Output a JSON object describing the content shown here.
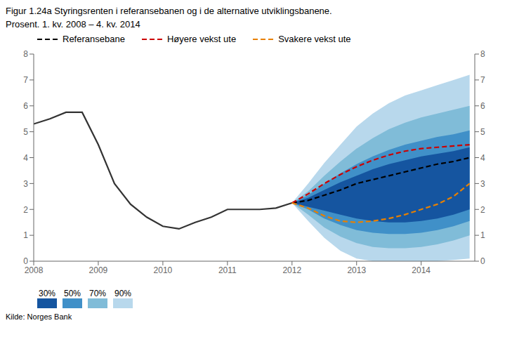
{
  "chart_data": {
    "type": "line",
    "title": "Figur 1.24a Styringsrenten i referansebanen og i de alternative utviklingsbanene.",
    "subtitle": "Prosent. 1. kv. 2008 – 4. kv. 2014",
    "annotations": [
      "Kilde: Norges Bank"
    ],
    "xlim": [
      2008.0,
      2014.83
    ],
    "xticks": [
      2008,
      2009,
      2010,
      2011,
      2012,
      2013,
      2014
    ],
    "ylim": [
      0,
      8
    ],
    "yticks": [
      0,
      1,
      2,
      3,
      4,
      5,
      6,
      7,
      8
    ],
    "y2lim": [
      0,
      8
    ],
    "y2ticks": [
      0,
      1,
      2,
      3,
      4,
      5,
      6,
      7,
      8
    ],
    "grid": false,
    "legend": "top",
    "series": [
      {
        "type": "band",
        "name": "30%",
        "color": "#1555a0",
        "x": [
          2012.0,
          2012.25,
          2012.5,
          2012.75,
          2013.0,
          2013.25,
          2013.5,
          2013.75,
          2014.0,
          2014.25,
          2014.5,
          2014.75
        ],
        "lower": [
          2.25,
          2.1,
          1.95,
          1.8,
          1.65,
          1.55,
          1.5,
          1.5,
          1.55,
          1.65,
          1.8,
          2.0
        ],
        "upper": [
          2.25,
          2.45,
          2.75,
          3.05,
          3.3,
          3.55,
          3.75,
          3.9,
          4.05,
          4.15,
          4.25,
          4.4
        ]
      },
      {
        "type": "band",
        "name": "50%",
        "color": "#4090c8",
        "x": [
          2012.0,
          2012.25,
          2012.5,
          2012.75,
          2013.0,
          2013.25,
          2013.5,
          2013.75,
          2014.0,
          2014.25,
          2014.5,
          2014.75
        ],
        "lower": [
          2.25,
          2.0,
          1.65,
          1.4,
          1.2,
          1.1,
          1.05,
          1.05,
          1.1,
          1.2,
          1.35,
          1.55
        ],
        "upper": [
          2.25,
          2.55,
          3.0,
          3.4,
          3.75,
          4.05,
          4.3,
          4.5,
          4.65,
          4.8,
          4.9,
          5.05
        ]
      },
      {
        "type": "band",
        "name": "70%",
        "color": "#80bcd8",
        "x": [
          2012.0,
          2012.25,
          2012.5,
          2012.75,
          2013.0,
          2013.25,
          2013.5,
          2013.75,
          2014.0,
          2014.25,
          2014.5,
          2014.75
        ],
        "lower": [
          2.25,
          1.8,
          1.3,
          0.95,
          0.7,
          0.55,
          0.5,
          0.5,
          0.55,
          0.65,
          0.8,
          1.0
        ],
        "upper": [
          2.25,
          2.7,
          3.3,
          3.85,
          4.35,
          4.75,
          5.1,
          5.35,
          5.55,
          5.7,
          5.85,
          6.0
        ]
      },
      {
        "type": "band",
        "name": "90%",
        "color": "#b8d8ec",
        "x": [
          2012.0,
          2012.25,
          2012.5,
          2012.75,
          2013.0,
          2013.25,
          2013.5,
          2013.75,
          2014.0,
          2014.25,
          2014.5,
          2014.75
        ],
        "lower": [
          2.25,
          1.55,
          0.9,
          0.4,
          0.1,
          0.0,
          0.0,
          0.0,
          0.0,
          0.0,
          0.05,
          0.1
        ],
        "upper": [
          2.25,
          3.0,
          3.8,
          4.5,
          5.2,
          5.7,
          6.1,
          6.4,
          6.6,
          6.8,
          7.0,
          7.2
        ]
      },
      {
        "type": "line",
        "color": "#333333",
        "line_style": "solid",
        "x": [
          2008.0,
          2008.25,
          2008.5,
          2008.75,
          2009.0,
          2009.25,
          2009.5,
          2009.75,
          2010.0,
          2010.25,
          2010.5,
          2010.75,
          2011.0,
          2011.25,
          2011.5,
          2011.75,
          2012.0
        ],
        "values": [
          5.3,
          5.5,
          5.75,
          5.75,
          4.5,
          3.0,
          2.2,
          1.7,
          1.35,
          1.25,
          1.5,
          1.7,
          2.0,
          2.0,
          2.0,
          2.05,
          2.25
        ]
      },
      {
        "type": "line",
        "name": "Referansebane",
        "color": "#000000",
        "line_style": "dashed",
        "x": [
          2012.0,
          2012.25,
          2012.5,
          2012.75,
          2013.0,
          2013.25,
          2013.5,
          2013.75,
          2014.0,
          2014.25,
          2014.5,
          2014.75
        ],
        "values": [
          2.25,
          2.35,
          2.55,
          2.75,
          3.0,
          3.15,
          3.3,
          3.45,
          3.6,
          3.75,
          3.85,
          4.0
        ]
      },
      {
        "type": "line",
        "name": "Høyere vekst ute",
        "color": "#cc0000",
        "line_style": "dashed",
        "x": [
          2012.0,
          2012.25,
          2012.5,
          2012.75,
          2013.0,
          2013.25,
          2013.5,
          2013.75,
          2014.0,
          2014.25,
          2014.5,
          2014.75
        ],
        "values": [
          2.25,
          2.6,
          3.0,
          3.35,
          3.65,
          3.9,
          4.1,
          4.25,
          4.35,
          4.4,
          4.45,
          4.5
        ]
      },
      {
        "type": "line",
        "name": "Svakere vekst ute",
        "color": "#e88000",
        "line_style": "dashed",
        "x": [
          2012.0,
          2012.25,
          2012.5,
          2012.75,
          2013.0,
          2013.25,
          2013.5,
          2013.75,
          2014.0,
          2014.25,
          2014.5,
          2014.75
        ],
        "values": [
          2.25,
          2.05,
          1.75,
          1.55,
          1.5,
          1.55,
          1.65,
          1.8,
          2.0,
          2.2,
          2.5,
          3.0
        ]
      }
    ]
  }
}
